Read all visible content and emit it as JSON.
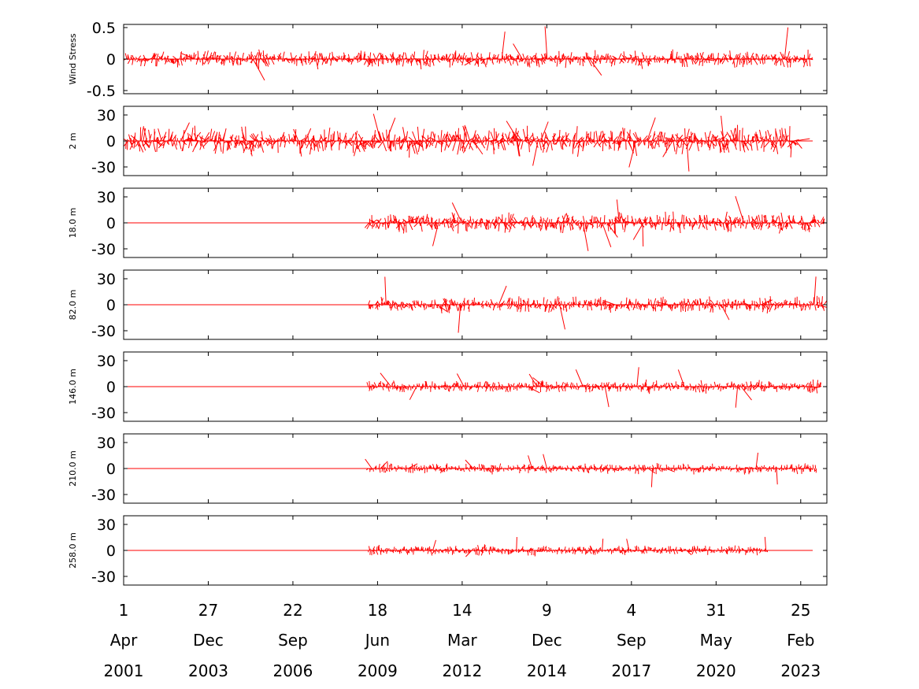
{
  "chart_data": {
    "type": "line",
    "description_shown": "stacked stick (vector) plots over time",
    "series_color": "#ff0000",
    "grid": false,
    "x_range": [
      "2001-04-01",
      "2023-12-31"
    ],
    "x_ticks": [
      {
        "day": "1",
        "month": "Apr",
        "year": "2001",
        "date": "2001-04-01"
      },
      {
        "day": "27",
        "month": "Dec",
        "year": "2003",
        "date": "2003-12-27"
      },
      {
        "day": "22",
        "month": "Sep",
        "year": "2006",
        "date": "2006-09-22"
      },
      {
        "day": "18",
        "month": "Jun",
        "year": "2009",
        "date": "2009-06-18"
      },
      {
        "day": "14",
        "month": "Mar",
        "year": "2012",
        "date": "2012-03-14"
      },
      {
        "day": "9",
        "month": "Dec",
        "year": "2014",
        "date": "2014-12-09"
      },
      {
        "day": "4",
        "month": "Sep",
        "year": "2017",
        "date": "2017-09-04"
      },
      {
        "day": "31",
        "month": "May",
        "year": "2020",
        "date": "2020-05-31"
      },
      {
        "day": "25",
        "month": "Feb",
        "year": "2023",
        "date": "2023-02-25"
      }
    ],
    "panels": [
      {
        "ylabel": "Wind Stress",
        "ylim": [
          -0.55,
          0.55
        ],
        "yticks": [
          0.5,
          0,
          -0.5
        ],
        "ytick_labels": [
          "0.5",
          "0",
          "-0.5"
        ],
        "data_start": "2001-05-01",
        "data_end": "2023-06-30",
        "typical_magnitude": 0.12,
        "peak_magnitude": 0.55
      },
      {
        "ylabel": "2 m",
        "ylim": [
          -40,
          40
        ],
        "yticks": [
          30,
          0,
          -30
        ],
        "ytick_labels": [
          "30",
          "0",
          "-30"
        ],
        "data_start": "2001-05-01",
        "data_end": "2022-12-31",
        "typical_magnitude": 14,
        "peak_magnitude": 40
      },
      {
        "ylabel": "18.0 m",
        "ylim": [
          -40,
          40
        ],
        "yticks": [
          30,
          0,
          -30
        ],
        "ytick_labels": [
          "30",
          "0",
          "-30"
        ],
        "data_start": "2009-03-01",
        "data_end": "2023-11-30",
        "typical_magnitude": 10,
        "peak_magnitude": 38
      },
      {
        "ylabel": "82.0 m",
        "ylim": [
          -40,
          40
        ],
        "yticks": [
          30,
          0,
          -30
        ],
        "ytick_labels": [
          "30",
          "0",
          "-30"
        ],
        "data_start": "2009-03-01",
        "data_end": "2023-11-30",
        "typical_magnitude": 8,
        "peak_magnitude": 35
      },
      {
        "ylabel": "146.0 m",
        "ylim": [
          -40,
          40
        ],
        "yticks": [
          30,
          0,
          -30
        ],
        "ytick_labels": [
          "30",
          "0",
          "-30"
        ],
        "data_start": "2009-03-01",
        "data_end": "2023-10-31",
        "typical_magnitude": 6,
        "peak_magnitude": 32
      },
      {
        "ylabel": "210.0 m",
        "ylim": [
          -40,
          40
        ],
        "yticks": [
          30,
          0,
          -30
        ],
        "ytick_labels": [
          "30",
          "0",
          "-30"
        ],
        "data_start": "2009-03-01",
        "data_end": "2023-08-31",
        "typical_magnitude": 5,
        "peak_magnitude": 25
      },
      {
        "ylabel": "258.0 m",
        "ylim": [
          -40,
          40
        ],
        "yticks": [
          30,
          0,
          -30
        ],
        "ytick_labels": [
          "30",
          "0",
          "-30"
        ],
        "data_start": "2009-03-01",
        "data_end": "2022-01-31",
        "typical_magnitude": 5,
        "peak_magnitude": 18
      }
    ]
  }
}
